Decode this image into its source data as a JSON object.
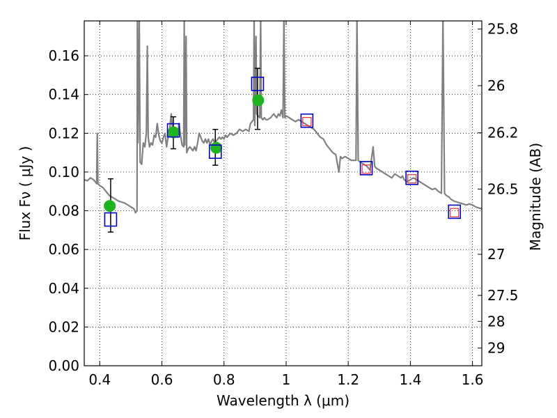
{
  "chart_data": {
    "type": "scatter",
    "xlabel": "Wavelength  λ (μm)",
    "ylabel": "Flux  Fν  ( μJy )",
    "ylabel_right": "Magnitude (AB)",
    "xlim": [
      0.35,
      1.63
    ],
    "ylim": [
      0,
      0.178
    ],
    "grid": true,
    "x_ticks": [
      {
        "value": 0.4,
        "label": "0.4"
      },
      {
        "value": 0.6,
        "label": "0.6"
      },
      {
        "value": 0.8,
        "label": "0.8"
      },
      {
        "value": 1.0,
        "label": "1"
      },
      {
        "value": 1.2,
        "label": "1.2"
      },
      {
        "value": 1.4,
        "label": "1.4"
      },
      {
        "value": 1.6,
        "label": "1.6"
      }
    ],
    "y_ticks": [
      {
        "value": 0.0,
        "label": "0.00"
      },
      {
        "value": 0.02,
        "label": "0.02"
      },
      {
        "value": 0.04,
        "label": "0.04"
      },
      {
        "value": 0.06,
        "label": "0.06"
      },
      {
        "value": 0.08,
        "label": "0.08"
      },
      {
        "value": 0.1,
        "label": "0.10"
      },
      {
        "value": 0.12,
        "label": "0.12"
      },
      {
        "value": 0.14,
        "label": "0.14"
      },
      {
        "value": 0.16,
        "label": "0.16"
      }
    ],
    "right_ticks": [
      {
        "mag": 25.8,
        "label": "25.8"
      },
      {
        "mag": 26,
        "label": "26"
      },
      {
        "mag": 26.2,
        "label": "26.2"
      },
      {
        "mag": 26.5,
        "label": "26.5"
      },
      {
        "mag": 27,
        "label": "27"
      },
      {
        "mag": 27.5,
        "label": "27.5"
      },
      {
        "mag": 28,
        "label": "28"
      },
      {
        "mag": 29,
        "label": "29"
      }
    ],
    "series": [
      {
        "kind": "line",
        "color": "#808080",
        "points": [
          [
            0.35,
            0.096
          ],
          [
            0.36,
            0.0955
          ],
          [
            0.37,
            0.097
          ],
          [
            0.375,
            0.0965
          ],
          [
            0.38,
            0.096
          ],
          [
            0.385,
            0.095
          ],
          [
            0.39,
            0.094
          ],
          [
            0.392,
            0.12
          ],
          [
            0.394,
            0.094
          ],
          [
            0.4,
            0.093
          ],
          [
            0.41,
            0.092
          ],
          [
            0.42,
            0.09
          ],
          [
            0.43,
            0.088
          ],
          [
            0.44,
            0.087
          ],
          [
            0.45,
            0.086
          ],
          [
            0.46,
            0.085
          ],
          [
            0.47,
            0.0845
          ],
          [
            0.48,
            0.084
          ],
          [
            0.49,
            0.083
          ],
          [
            0.5,
            0.082
          ],
          [
            0.51,
            0.081
          ],
          [
            0.515,
            0.079
          ],
          [
            0.52,
            0.08
          ],
          [
            0.521,
            0.18
          ],
          [
            0.523,
            0.115
          ],
          [
            0.527,
            0.18
          ],
          [
            0.53,
            0.105
          ],
          [
            0.535,
            0.104
          ],
          [
            0.54,
            0.115
          ],
          [
            0.545,
            0.113
          ],
          [
            0.55,
            0.12
          ],
          [
            0.553,
            0.165
          ],
          [
            0.556,
            0.118
          ],
          [
            0.56,
            0.113
          ],
          [
            0.565,
            0.115
          ],
          [
            0.57,
            0.114
          ],
          [
            0.575,
            0.119
          ],
          [
            0.58,
            0.118
          ],
          [
            0.585,
            0.125
          ],
          [
            0.59,
            0.119
          ],
          [
            0.595,
            0.116
          ],
          [
            0.6,
            0.115
          ],
          [
            0.605,
            0.118
          ],
          [
            0.61,
            0.12
          ],
          [
            0.615,
            0.113
          ],
          [
            0.62,
            0.118
          ],
          [
            0.625,
            0.122
          ],
          [
            0.63,
            0.13
          ],
          [
            0.635,
            0.121
          ],
          [
            0.64,
            0.12
          ],
          [
            0.645,
            0.119
          ],
          [
            0.65,
            0.118
          ],
          [
            0.655,
            0.125
          ],
          [
            0.66,
            0.119
          ],
          [
            0.665,
            0.114
          ],
          [
            0.67,
            0.113
          ],
          [
            0.672,
            0.18
          ],
          [
            0.674,
            0.114
          ],
          [
            0.678,
            0.17
          ],
          [
            0.68,
            0.11
          ],
          [
            0.685,
            0.112
          ],
          [
            0.69,
            0.113
          ],
          [
            0.695,
            0.112
          ],
          [
            0.7,
            0.111
          ],
          [
            0.705,
            0.113
          ],
          [
            0.71,
            0.111
          ],
          [
            0.715,
            0.115
          ],
          [
            0.72,
            0.12
          ],
          [
            0.725,
            0.118
          ],
          [
            0.73,
            0.116
          ],
          [
            0.735,
            0.115
          ],
          [
            0.74,
            0.117
          ],
          [
            0.745,
            0.115
          ],
          [
            0.75,
            0.117
          ],
          [
            0.755,
            0.114
          ],
          [
            0.76,
            0.116
          ],
          [
            0.765,
            0.117
          ],
          [
            0.77,
            0.115
          ],
          [
            0.775,
            0.116
          ],
          [
            0.78,
            0.117
          ],
          [
            0.785,
            0.118
          ],
          [
            0.79,
            0.117
          ],
          [
            0.795,
            0.118
          ],
          [
            0.8,
            0.117
          ],
          [
            0.805,
            0.119
          ],
          [
            0.81,
            0.118
          ],
          [
            0.82,
            0.12
          ],
          [
            0.83,
            0.119
          ],
          [
            0.84,
            0.12
          ],
          [
            0.85,
            0.122
          ],
          [
            0.86,
            0.121
          ],
          [
            0.87,
            0.122
          ],
          [
            0.88,
            0.121
          ],
          [
            0.885,
            0.125
          ],
          [
            0.89,
            0.126
          ],
          [
            0.895,
            0.127
          ],
          [
            0.897,
            0.18
          ],
          [
            0.899,
            0.124
          ],
          [
            0.903,
            0.17
          ],
          [
            0.905,
            0.13
          ],
          [
            0.91,
            0.129
          ],
          [
            0.915,
            0.128
          ],
          [
            0.918,
            0.18
          ],
          [
            0.92,
            0.128
          ],
          [
            0.925,
            0.127
          ],
          [
            0.93,
            0.128
          ],
          [
            0.935,
            0.127
          ],
          [
            0.94,
            0.127
          ],
          [
            0.95,
            0.128
          ],
          [
            0.96,
            0.13
          ],
          [
            0.965,
            0.129
          ],
          [
            0.97,
            0.128
          ],
          [
            0.975,
            0.13
          ],
          [
            0.98,
            0.129
          ],
          [
            0.985,
            0.132
          ],
          [
            0.99,
            0.128
          ],
          [
            0.993,
            0.18
          ],
          [
            0.996,
            0.128
          ],
          [
            1.0,
            0.129
          ],
          [
            1.01,
            0.128
          ],
          [
            1.02,
            0.127
          ],
          [
            1.03,
            0.126
          ],
          [
            1.04,
            0.127
          ],
          [
            1.05,
            0.126
          ],
          [
            1.06,
            0.125
          ],
          [
            1.07,
            0.124
          ],
          [
            1.08,
            0.123
          ],
          [
            1.09,
            0.122
          ],
          [
            1.1,
            0.12
          ],
          [
            1.11,
            0.118
          ],
          [
            1.12,
            0.117
          ],
          [
            1.13,
            0.114
          ],
          [
            1.14,
            0.112
          ],
          [
            1.15,
            0.11
          ],
          [
            1.16,
            0.109
          ],
          [
            1.17,
            0.1
          ],
          [
            1.175,
            0.108
          ],
          [
            1.18,
            0.107
          ],
          [
            1.19,
            0.108
          ],
          [
            1.2,
            0.107
          ],
          [
            1.21,
            0.106
          ],
          [
            1.225,
            0.106
          ],
          [
            1.228,
            0.18
          ],
          [
            1.232,
            0.106
          ],
          [
            1.24,
            0.105
          ],
          [
            1.25,
            0.104
          ],
          [
            1.26,
            0.103
          ],
          [
            1.27,
            0.101
          ],
          [
            1.28,
            0.113
          ],
          [
            1.285,
            0.103
          ],
          [
            1.29,
            0.102
          ],
          [
            1.3,
            0.101
          ],
          [
            1.31,
            0.1
          ],
          [
            1.32,
            0.099
          ],
          [
            1.33,
            0.098
          ],
          [
            1.34,
            0.097
          ],
          [
            1.35,
            0.099
          ],
          [
            1.36,
            0.098
          ],
          [
            1.37,
            0.097
          ],
          [
            1.375,
            0.098
          ],
          [
            1.38,
            0.096
          ],
          [
            1.39,
            0.095
          ],
          [
            1.4,
            0.096
          ],
          [
            1.41,
            0.097
          ],
          [
            1.42,
            0.096
          ],
          [
            1.43,
            0.095
          ],
          [
            1.44,
            0.094
          ],
          [
            1.45,
            0.093
          ],
          [
            1.46,
            0.092
          ],
          [
            1.47,
            0.091
          ],
          [
            1.48,
            0.0915
          ],
          [
            1.49,
            0.09
          ],
          [
            1.5,
            0.089
          ],
          [
            1.505,
            0.18
          ],
          [
            1.51,
            0.089
          ],
          [
            1.515,
            0.088
          ],
          [
            1.52,
            0.0875
          ],
          [
            1.525,
            0.087
          ],
          [
            1.53,
            0.086
          ],
          [
            1.54,
            0.085
          ],
          [
            1.55,
            0.0845
          ],
          [
            1.56,
            0.084
          ],
          [
            1.57,
            0.0835
          ],
          [
            1.58,
            0.083
          ],
          [
            1.59,
            0.0835
          ],
          [
            1.6,
            0.083
          ],
          [
            1.61,
            0.082
          ],
          [
            1.62,
            0.0815
          ],
          [
            1.63,
            0.081
          ]
        ]
      },
      {
        "kind": "scatter",
        "marker": "circle",
        "color": "#1eb41e",
        "points": [
          [
            0.432,
            0.0825
          ],
          [
            0.637,
            0.1205
          ],
          [
            0.775,
            0.1125
          ],
          [
            0.91,
            0.137
          ]
        ]
      },
      {
        "kind": "scatter",
        "marker": "square-open",
        "color": "#0000cc",
        "points": [
          [
            0.435,
            0.0755
          ],
          [
            0.637,
            0.1215
          ],
          [
            0.772,
            0.1105
          ],
          [
            0.908,
            0.1455
          ],
          [
            1.067,
            0.1265
          ],
          [
            1.258,
            0.102
          ],
          [
            1.405,
            0.097
          ],
          [
            1.542,
            0.0795
          ]
        ]
      },
      {
        "kind": "scatter",
        "marker": "square-open-small",
        "color": "#ee3333",
        "points": [
          [
            1.067,
            0.126
          ],
          [
            1.258,
            0.1015
          ],
          [
            1.405,
            0.0965
          ],
          [
            1.542,
            0.079
          ]
        ]
      }
    ],
    "errorbars": [
      {
        "x": 0.435,
        "low": 0.069,
        "high": 0.0965
      },
      {
        "x": 0.637,
        "low": 0.112,
        "high": 0.1285
      },
      {
        "x": 0.772,
        "low": 0.1035,
        "high": 0.122
      },
      {
        "x": 0.908,
        "low": 0.122,
        "high": 0.1535
      }
    ]
  }
}
